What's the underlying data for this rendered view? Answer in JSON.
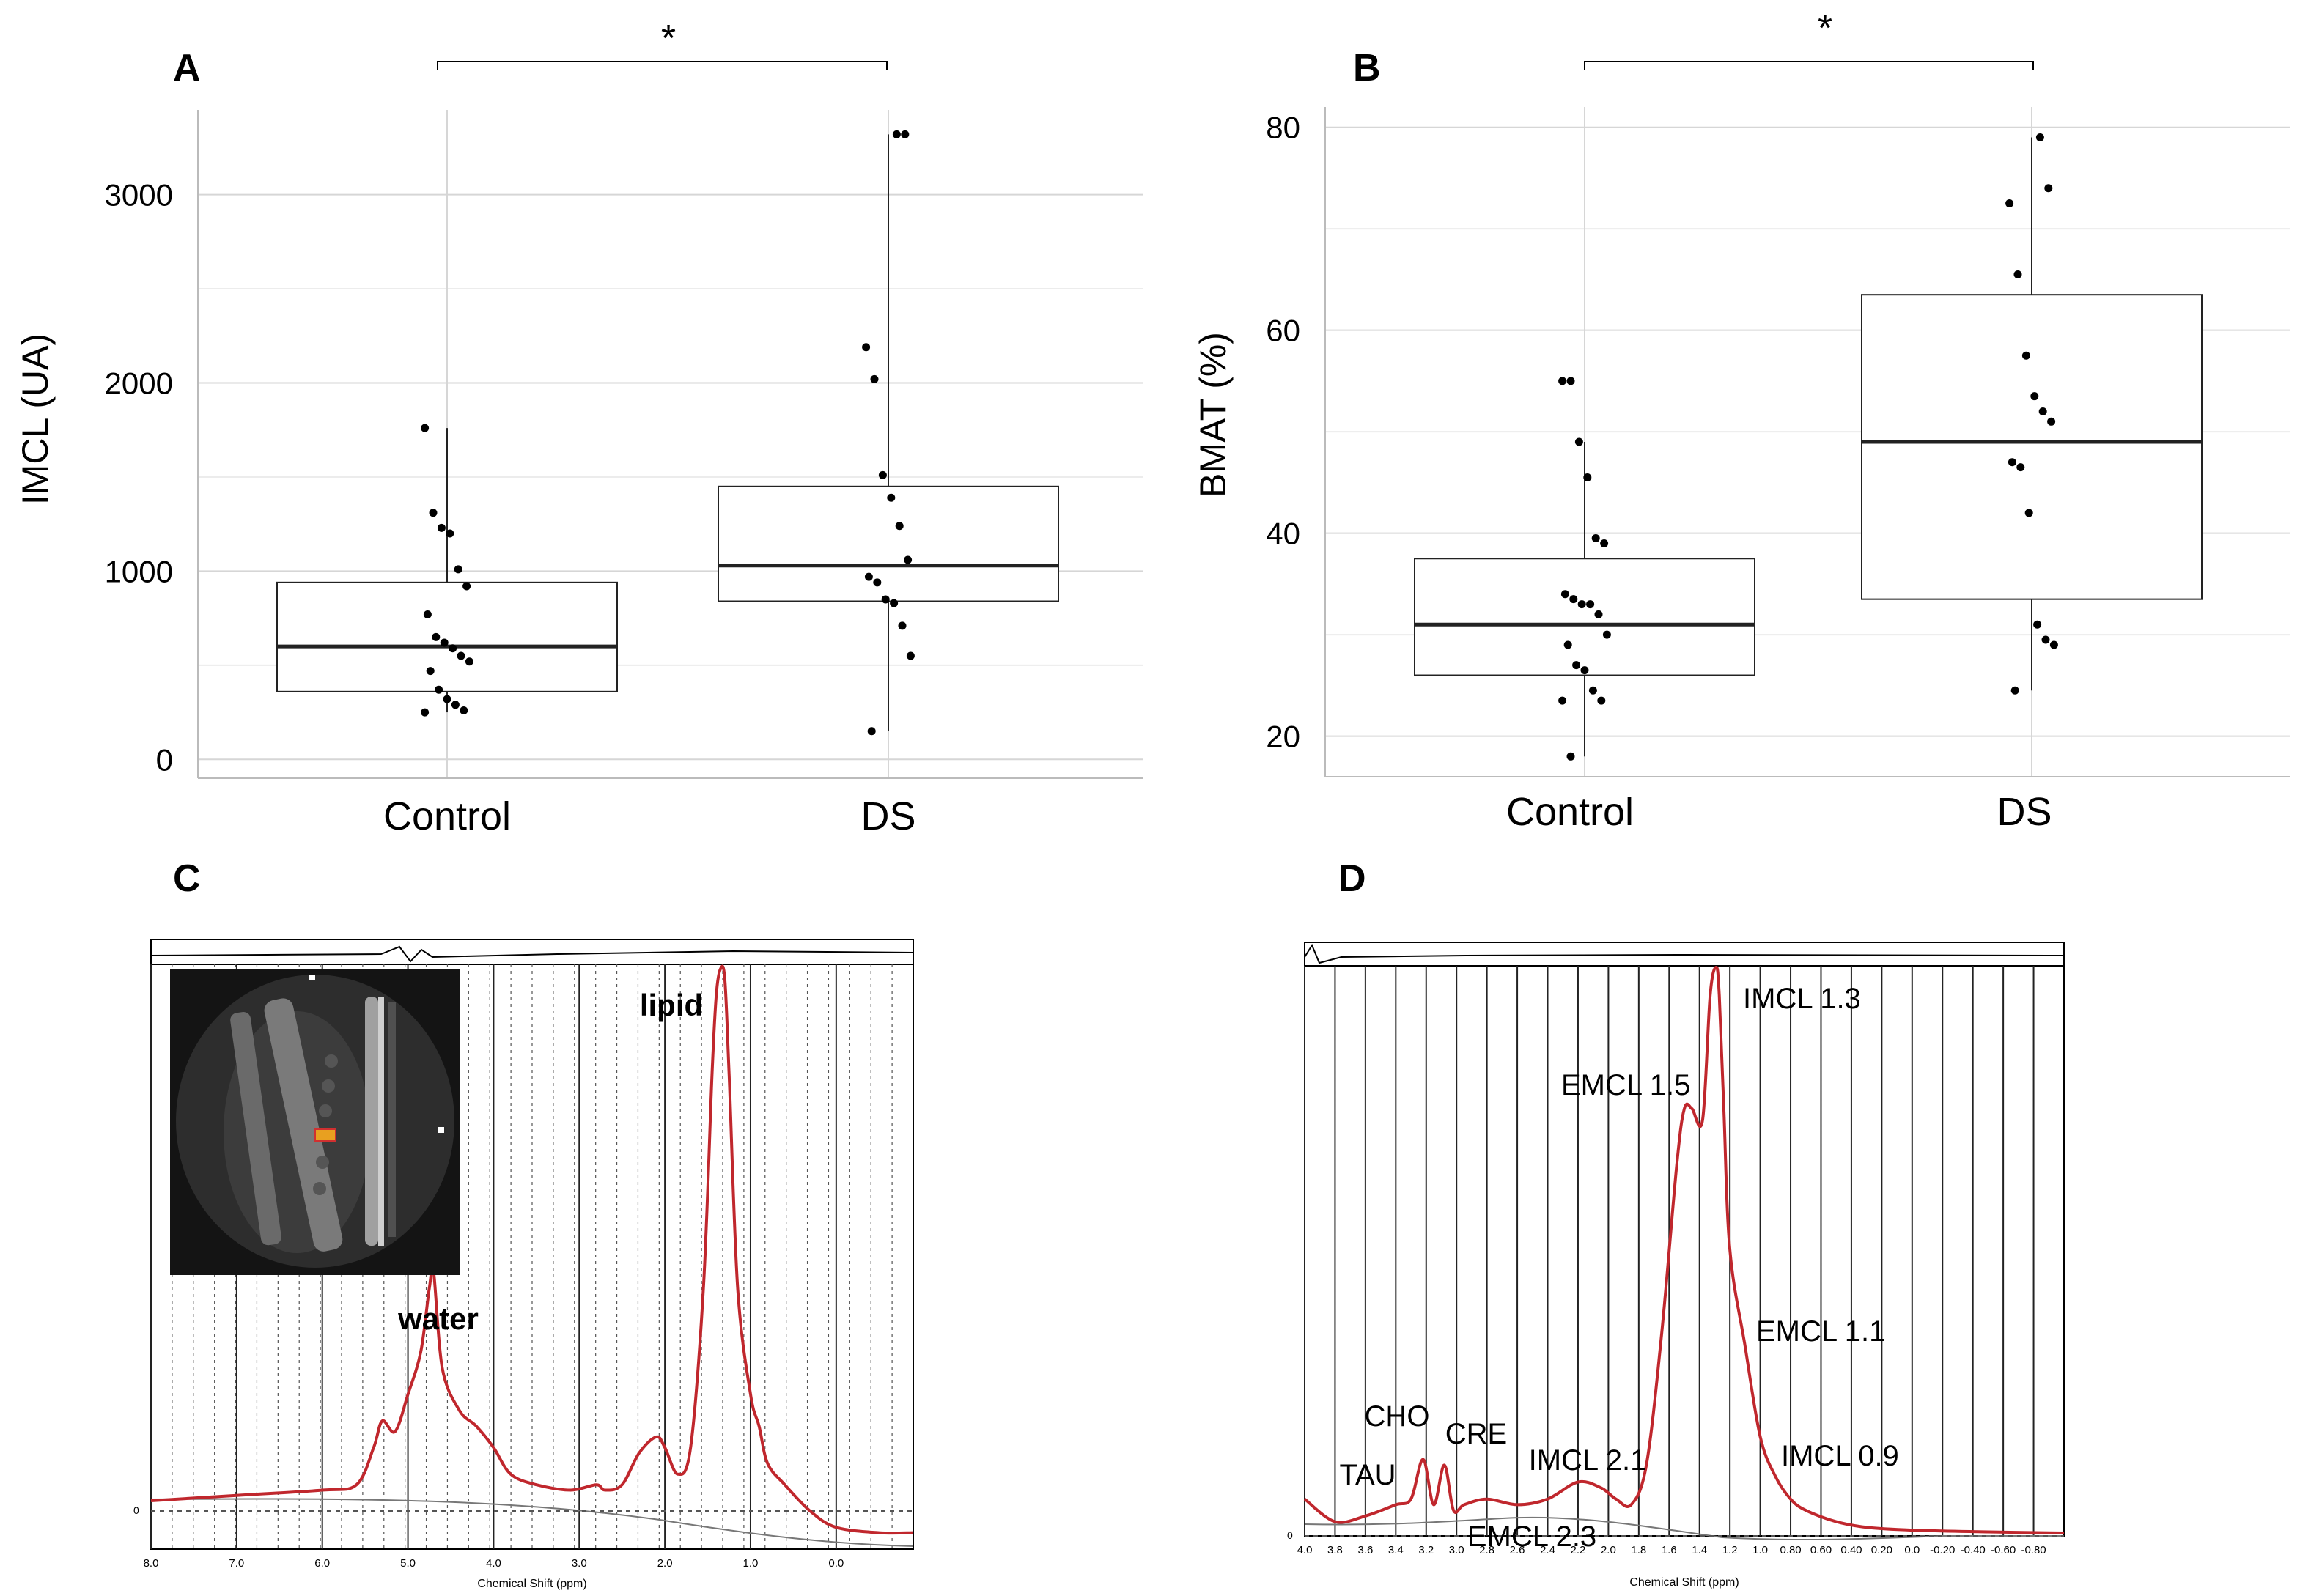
{
  "panels": {
    "A": {
      "label": "A"
    },
    "B": {
      "label": "B"
    },
    "C": {
      "label": "C"
    },
    "D": {
      "label": "D"
    }
  },
  "chart_data": [
    {
      "id": "A",
      "type": "box",
      "ylabel": "IMCL (UA)",
      "categories": [
        "Control",
        "DS"
      ],
      "yticks": [
        "0",
        "1000",
        "2000",
        "3000"
      ],
      "ylim": [
        -100,
        3450
      ],
      "significance": "*",
      "boxes": [
        {
          "name": "Control",
          "q1": 360,
          "median": 600,
          "q3": 940,
          "whisker_low": 250,
          "whisker_high": 1760
        },
        {
          "name": "DS",
          "q1": 840,
          "median": 1030,
          "q3": 1450,
          "whisker_low": 150,
          "whisker_high": 3320
        }
      ],
      "points": [
        [
          1760,
          1310,
          1230,
          1200,
          1010,
          920,
          770,
          650,
          620,
          590,
          550,
          520,
          470,
          370,
          320,
          290,
          260,
          250
        ],
        [
          3320,
          3320,
          2190,
          2020,
          1510,
          1390,
          1240,
          1060,
          970,
          940,
          850,
          830,
          710,
          550,
          150
        ]
      ]
    },
    {
      "id": "B",
      "type": "box",
      "ylabel": "BMAT (%)",
      "categories": [
        "Control",
        "DS"
      ],
      "yticks": [
        "20",
        "40",
        "60",
        "80"
      ],
      "ylim": [
        16,
        82
      ],
      "significance": "*",
      "boxes": [
        {
          "name": "Control",
          "q1": 26,
          "median": 31,
          "q3": 37.5,
          "whisker_low": 18,
          "whisker_high": 49
        },
        {
          "name": "DS",
          "q1": 33.5,
          "median": 49,
          "q3": 63.5,
          "whisker_low": 24.5,
          "whisker_high": 79
        }
      ],
      "points": [
        [
          55,
          55,
          49,
          45.5,
          39.5,
          39,
          34,
          33.5,
          33,
          33,
          32,
          30,
          29,
          27,
          26.5,
          24.5,
          23.5,
          23.5,
          18
        ],
        [
          79,
          74,
          72.5,
          65.5,
          57.5,
          53.5,
          52,
          51,
          47,
          46.5,
          42,
          31,
          29.5,
          29,
          24.5
        ]
      ]
    },
    {
      "id": "C",
      "type": "line",
      "xlabel": "Chemical Shift (ppm)",
      "xticks": [
        "8.0",
        "7.0",
        "6.0",
        "5.0",
        "4.0",
        "3.0",
        "2.0",
        "1.0",
        "0.0"
      ],
      "xlim": [
        8.0,
        -0.9
      ],
      "x": [
        8.0,
        7.0,
        6.0,
        5.6,
        5.4,
        5.3,
        5.15,
        5.0,
        4.85,
        4.75,
        4.7,
        4.6,
        4.4,
        4.2,
        4.0,
        3.8,
        3.5,
        3.1,
        2.8,
        2.7,
        2.5,
        2.3,
        2.1,
        2.0,
        1.85,
        1.7,
        1.55,
        1.45,
        1.4,
        1.35,
        1.3,
        1.25,
        1.15,
        1.0,
        0.9,
        0.8,
        0.6,
        0.3,
        0.0,
        -0.5,
        -0.9
      ],
      "series": [
        {
          "color": "#c0272d",
          "values": [
            0.0,
            0.01,
            0.02,
            0.03,
            0.1,
            0.15,
            0.13,
            0.2,
            0.28,
            0.4,
            0.43,
            0.25,
            0.17,
            0.14,
            0.1,
            0.05,
            0.03,
            0.02,
            0.03,
            0.02,
            0.03,
            0.09,
            0.12,
            0.1,
            0.05,
            0.1,
            0.4,
            0.8,
            0.95,
            1.0,
            0.98,
            0.8,
            0.4,
            0.2,
            0.14,
            0.07,
            0.03,
            -0.02,
            -0.05,
            -0.06,
            -0.06
          ]
        }
      ],
      "annotations": [
        {
          "text": "water",
          "x": 4.7
        },
        {
          "text": "lipid",
          "x": 1.3
        }
      ],
      "inset": "MRI"
    },
    {
      "id": "D",
      "type": "line",
      "xlabel": "Chemical Shift (ppm)",
      "xticks": [
        "4.0",
        "3.8",
        "3.6",
        "3.4",
        "3.2",
        "3.0",
        "2.8",
        "2.6",
        "2.4",
        "2.2",
        "2.0",
        "1.8",
        "1.6",
        "1.4",
        "1.2",
        "1.0",
        "0.80",
        "0.60",
        "0.40",
        "0.20",
        "0.0",
        "-0.20",
        "-0.40",
        "-0.60",
        "-0.80"
      ],
      "xlim": [
        4.0,
        -1.0
      ],
      "x": [
        4.0,
        3.8,
        3.6,
        3.4,
        3.3,
        3.22,
        3.15,
        3.08,
        3.02,
        2.95,
        2.8,
        2.6,
        2.4,
        2.2,
        2.05,
        1.95,
        1.85,
        1.75,
        1.65,
        1.55,
        1.5,
        1.45,
        1.38,
        1.33,
        1.29,
        1.27,
        1.24,
        1.2,
        1.1,
        1.0,
        0.9,
        0.8,
        0.7,
        0.5,
        0.3,
        0.0,
        -0.5,
        -1.0
      ],
      "series": [
        {
          "color": "#c0272d",
          "values": [
            0.06,
            0.02,
            0.03,
            0.05,
            0.06,
            0.13,
            0.05,
            0.12,
            0.04,
            0.05,
            0.06,
            0.05,
            0.06,
            0.09,
            0.08,
            0.06,
            0.05,
            0.12,
            0.35,
            0.65,
            0.75,
            0.75,
            0.73,
            0.95,
            1.0,
            0.95,
            0.75,
            0.5,
            0.33,
            0.17,
            0.1,
            0.06,
            0.04,
            0.02,
            0.01,
            0.005,
            0.002,
            0.0
          ]
        }
      ],
      "annotations": [
        {
          "text": "IMCL 1.3"
        },
        {
          "text": "EMCL 1.5"
        },
        {
          "text": "EMCL 1.1"
        },
        {
          "text": "IMCL 0.9"
        },
        {
          "text": "CHO"
        },
        {
          "text": "CRE"
        },
        {
          "text": "TAU"
        },
        {
          "text": "IMCL 2.1"
        },
        {
          "text": "EMCL 2.3"
        }
      ]
    }
  ]
}
